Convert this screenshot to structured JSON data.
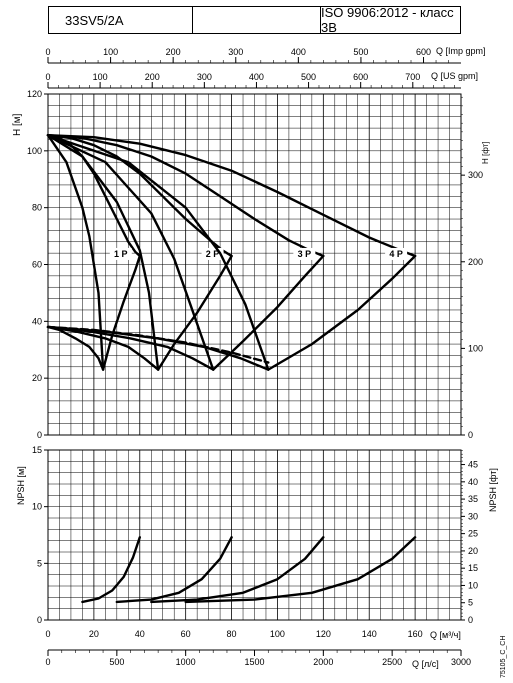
{
  "header": {
    "model": "33SV5/2A",
    "middle": "",
    "standard": "ISO 9906:2012 - класс 3B"
  },
  "axes": {
    "imp_gpm": {
      "label": "Q [Imp gpm]",
      "ticks": [
        "0",
        "100",
        "200",
        "300",
        "400",
        "500",
        "600"
      ]
    },
    "us_gpm": {
      "label": "Q [US gpm]",
      "ticks": [
        "0",
        "100",
        "200",
        "300",
        "400",
        "500",
        "600",
        "700"
      ]
    },
    "h_m": {
      "label": "H [м]",
      "ticks": [
        "0",
        "20",
        "40",
        "60",
        "80",
        "100",
        "120"
      ]
    },
    "h_ft": {
      "label": "H [фт]",
      "ticks": [
        "0",
        "100",
        "200",
        "300"
      ]
    },
    "npsh_m": {
      "label": "NPSH [м]",
      "ticks": [
        "0",
        "5",
        "10",
        "15"
      ]
    },
    "npsh_ft": {
      "label": "NPSH [фт]",
      "ticks": [
        "0",
        "5",
        "10",
        "15",
        "20",
        "25",
        "30",
        "35",
        "40",
        "45"
      ]
    },
    "q_m3h": {
      "label": "Q [м³/ч]",
      "ticks": [
        "0",
        "20",
        "40",
        "60",
        "80",
        "100",
        "120",
        "140",
        "160"
      ]
    },
    "q_ls": {
      "label": "Q [л/с]",
      "ticks": [
        "0",
        "500",
        "1000",
        "1500",
        "2000",
        "2500",
        "3000"
      ]
    }
  },
  "footnote": "75105_C_CH",
  "chart_data": [
    {
      "type": "line",
      "title": "",
      "xlabel": "Q [м³/ч]",
      "ylabel": "H [м]",
      "xlim": [
        0,
        180
      ],
      "ylim": [
        0,
        120
      ],
      "grid": true,
      "series": [
        {
          "name": "1 P",
          "x": [
            0,
            5,
            10,
            15,
            20,
            25,
            30,
            35,
            38,
            40
          ],
          "y": [
            105.5,
            104.5,
            102,
            98,
            92,
            84,
            76,
            68,
            64.5,
            63
          ]
        },
        {
          "name": "2 P",
          "x": [
            0,
            10,
            20,
            30,
            40,
            50,
            60,
            70,
            76,
            80
          ],
          "y": [
            105.5,
            104.5,
            102,
            98,
            92,
            84,
            76,
            69,
            65,
            63
          ]
        },
        {
          "name": "3 P",
          "x": [
            0,
            15,
            30,
            45,
            60,
            75,
            90,
            105,
            114,
            120
          ],
          "y": [
            105.5,
            104.5,
            102,
            98,
            92,
            84,
            76,
            68.5,
            65,
            63
          ]
        },
        {
          "name": "4 P",
          "x": [
            0,
            20,
            40,
            60,
            80,
            100,
            120,
            140,
            152,
            160
          ],
          "y": [
            105.5,
            104.8,
            102.5,
            98.5,
            93,
            85.5,
            77.5,
            69.5,
            65.5,
            63
          ]
        },
        {
          "name": "",
          "x": [
            0,
            8,
            15,
            18,
            22,
            24
          ],
          "y": [
            105.5,
            96,
            80,
            70,
            50,
            23
          ]
        },
        {
          "name": "",
          "x": [
            24,
            28,
            33,
            38,
            40
          ],
          "y": [
            23,
            35,
            47,
            58,
            63
          ]
        },
        {
          "name": "",
          "x": [
            0,
            15,
            30,
            40,
            44,
            48
          ],
          "y": [
            105.5,
            98,
            82,
            65,
            50,
            23
          ]
        },
        {
          "name": "",
          "x": [
            48,
            55,
            65,
            75,
            80
          ],
          "y": [
            23,
            32,
            43,
            56,
            63
          ]
        },
        {
          "name": "",
          "x": [
            0,
            25,
            45,
            55,
            62,
            72
          ],
          "y": [
            105.5,
            96,
            78,
            62,
            46,
            23
          ]
        },
        {
          "name": "",
          "x": [
            72,
            85,
            100,
            112,
            120
          ],
          "y": [
            23,
            33,
            45,
            56,
            63
          ]
        },
        {
          "name": "",
          "x": [
            0,
            35,
            60,
            75,
            86,
            96
          ],
          "y": [
            105.5,
            96,
            80,
            64,
            46,
            23
          ]
        },
        {
          "name": "",
          "x": [
            96,
            115,
            135,
            150,
            160
          ],
          "y": [
            23,
            32,
            44,
            55,
            63
          ]
        },
        {
          "name": "",
          "x": [
            0,
            5,
            12,
            18,
            22,
            24
          ],
          "y": [
            38,
            37,
            34,
            31,
            27,
            23
          ]
        },
        {
          "name": "",
          "x": [
            0,
            12,
            25,
            35,
            42,
            48
          ],
          "y": [
            38,
            36.5,
            34,
            31,
            27,
            23
          ]
        },
        {
          "name": "",
          "x": [
            0,
            18,
            36,
            52,
            63,
            72
          ],
          "y": [
            38,
            36.5,
            34,
            31,
            27,
            23
          ]
        },
        {
          "name": "",
          "x": [
            0,
            24,
            48,
            68,
            84,
            96
          ],
          "y": [
            38,
            36.5,
            34,
            31,
            27,
            23
          ]
        },
        {
          "name": "",
          "x": [
            0,
            20,
            40,
            60,
            80,
            96
          ],
          "y": [
            38,
            37,
            35,
            32.5,
            29,
            25.5
          ]
        }
      ]
    },
    {
      "type": "line",
      "title": "",
      "xlabel": "Q [м³/ч]",
      "ylabel": "NPSH [м]",
      "xlim": [
        0,
        180
      ],
      "ylim": [
        0,
        15
      ],
      "grid": true,
      "series": [
        {
          "name": "",
          "x": [
            15,
            22,
            28,
            33,
            37,
            40
          ],
          "y": [
            1.6,
            1.9,
            2.6,
            3.8,
            5.5,
            7.3
          ]
        },
        {
          "name": "",
          "x": [
            30,
            45,
            57,
            67,
            75,
            80
          ],
          "y": [
            1.6,
            1.8,
            2.4,
            3.6,
            5.4,
            7.3
          ]
        },
        {
          "name": "",
          "x": [
            45,
            65,
            85,
            100,
            112,
            120
          ],
          "y": [
            1.6,
            1.8,
            2.4,
            3.6,
            5.4,
            7.3
          ]
        },
        {
          "name": "",
          "x": [
            60,
            90,
            115,
            135,
            150,
            160
          ],
          "y": [
            1.6,
            1.8,
            2.4,
            3.6,
            5.4,
            7.3
          ]
        }
      ]
    }
  ]
}
